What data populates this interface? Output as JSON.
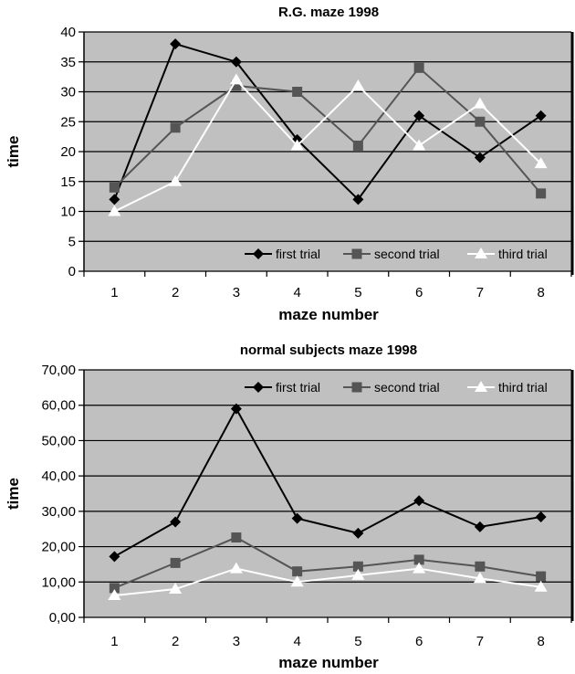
{
  "chart_data": [
    {
      "type": "line",
      "title": "R.G. maze 1998",
      "xlabel": "maze number",
      "ylabel": "time",
      "categories": [
        "1",
        "2",
        "3",
        "4",
        "5",
        "6",
        "7",
        "8"
      ],
      "ylim": [
        0,
        40
      ],
      "yticks": [
        "0",
        "5",
        "10",
        "15",
        "20",
        "25",
        "30",
        "35",
        "40"
      ],
      "ytick_values": [
        0,
        5,
        10,
        15,
        20,
        25,
        30,
        35,
        40
      ],
      "grid": true,
      "legend_placement": "bottom-right",
      "series": [
        {
          "name": "first trial",
          "marker": "diamond",
          "color": "#000000",
          "values": [
            12,
            38,
            35,
            22,
            12,
            26,
            19,
            26
          ]
        },
        {
          "name": "second trial",
          "marker": "square",
          "color": "#555555",
          "values": [
            14,
            24,
            31,
            30,
            21,
            34,
            25,
            13
          ]
        },
        {
          "name": "third trial",
          "marker": "triangle",
          "color": "#ffffff",
          "values": [
            10,
            15,
            32,
            21,
            31,
            21,
            28,
            18
          ]
        }
      ]
    },
    {
      "type": "line",
      "title": "normal subjects maze 1998",
      "xlabel": "maze number",
      "ylabel": "time",
      "categories": [
        "1",
        "2",
        "3",
        "4",
        "5",
        "6",
        "7",
        "8"
      ],
      "ylim": [
        0,
        70
      ],
      "yticks": [
        "0,00",
        "10,00",
        "20,00",
        "30,00",
        "40,00",
        "50,00",
        "60,00",
        "70,00"
      ],
      "ytick_values": [
        0,
        10,
        20,
        30,
        40,
        50,
        60,
        70
      ],
      "grid": true,
      "legend_placement": "top-right",
      "series": [
        {
          "name": "first trial",
          "marker": "diamond",
          "color": "#000000",
          "values": [
            17.2,
            27,
            59,
            28,
            23.8,
            33,
            25.6,
            28.4
          ]
        },
        {
          "name": "second trial",
          "marker": "square",
          "color": "#555555",
          "values": [
            8.3,
            15.4,
            22.6,
            13,
            14.4,
            16.3,
            14.4,
            11.6
          ]
        },
        {
          "name": "third trial",
          "marker": "triangle",
          "color": "#ffffff",
          "values": [
            6.2,
            8,
            13.8,
            10,
            11.9,
            13.8,
            11,
            8.6
          ]
        }
      ]
    }
  ]
}
